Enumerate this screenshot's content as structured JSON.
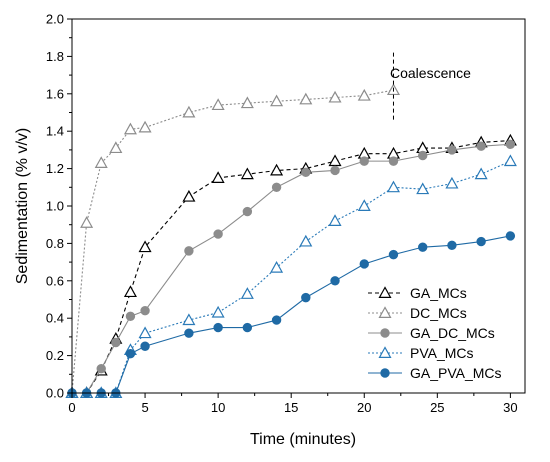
{
  "chart_data": {
    "type": "line",
    "xlabel": "Time (minutes)",
    "ylabel": "Sedimentation (% v/v)",
    "xlim": [
      0,
      31
    ],
    "ylim": [
      0,
      2.0
    ],
    "xticks": [
      "0",
      "5",
      "10",
      "15",
      "20",
      "25",
      "30"
    ],
    "yticks": [
      "0.0",
      "0.2",
      "0.4",
      "0.6",
      "0.8",
      "1.0",
      "1.2",
      "1.4",
      "1.6",
      "1.8",
      "2.0"
    ],
    "grid": false,
    "legend_position": "bottom-right",
    "annotation": {
      "text": "Coalescence",
      "x": 22
    },
    "series": [
      {
        "name": "GA_MCs",
        "color": "#000000",
        "line": "dashed",
        "marker": "triangle-open",
        "x": [
          0,
          1,
          2,
          3,
          4,
          5,
          8,
          10,
          12,
          14,
          16,
          18,
          20,
          22,
          24,
          26,
          28,
          30
        ],
        "y": [
          0.0,
          0.0,
          0.12,
          0.29,
          0.54,
          0.78,
          1.05,
          1.15,
          1.17,
          1.19,
          1.2,
          1.24,
          1.28,
          1.28,
          1.31,
          1.31,
          1.34,
          1.35
        ]
      },
      {
        "name": "DC_MCs",
        "color": "#8c8c8c",
        "line": "dotted",
        "marker": "triangle-open",
        "x": [
          0,
          1,
          2,
          3,
          4,
          5,
          8,
          10,
          12,
          14,
          16,
          18,
          20,
          22
        ],
        "y": [
          0.0,
          0.91,
          1.23,
          1.31,
          1.41,
          1.42,
          1.5,
          1.54,
          1.55,
          1.56,
          1.57,
          1.58,
          1.59,
          1.62
        ]
      },
      {
        "name": "GA_DC_MCs",
        "color": "#8c8c8c",
        "line": "solid",
        "marker": "circle-filled",
        "x": [
          0,
          1,
          2,
          3,
          4,
          5,
          8,
          10,
          12,
          14,
          16,
          18,
          20,
          22,
          24,
          26,
          28,
          30
        ],
        "y": [
          0.0,
          0.0,
          0.13,
          0.27,
          0.41,
          0.44,
          0.76,
          0.85,
          0.97,
          1.1,
          1.18,
          1.19,
          1.24,
          1.24,
          1.27,
          1.3,
          1.32,
          1.33
        ]
      },
      {
        "name": "PVA_MCs",
        "color": "#2a7ab8",
        "line": "dotted",
        "marker": "triangle-open",
        "x": [
          0,
          1,
          2,
          3,
          4,
          5,
          8,
          10,
          12,
          14,
          16,
          18,
          20,
          22,
          24,
          26,
          28,
          30
        ],
        "y": [
          0.0,
          0.0,
          0.0,
          0.0,
          0.23,
          0.32,
          0.39,
          0.43,
          0.53,
          0.67,
          0.81,
          0.92,
          1.0,
          1.1,
          1.09,
          1.12,
          1.17,
          1.24
        ]
      },
      {
        "name": "GA_PVA_MCs",
        "color": "#1f6aa5",
        "line": "solid",
        "marker": "circle-filled",
        "x": [
          0,
          1,
          2,
          3,
          4,
          5,
          8,
          10,
          12,
          14,
          16,
          18,
          20,
          22,
          24,
          26,
          28,
          30
        ],
        "y": [
          0.0,
          0.0,
          0.0,
          0.0,
          0.21,
          0.25,
          0.32,
          0.35,
          0.35,
          0.39,
          0.51,
          0.6,
          0.69,
          0.74,
          0.78,
          0.79,
          0.81,
          0.84
        ]
      }
    ]
  }
}
